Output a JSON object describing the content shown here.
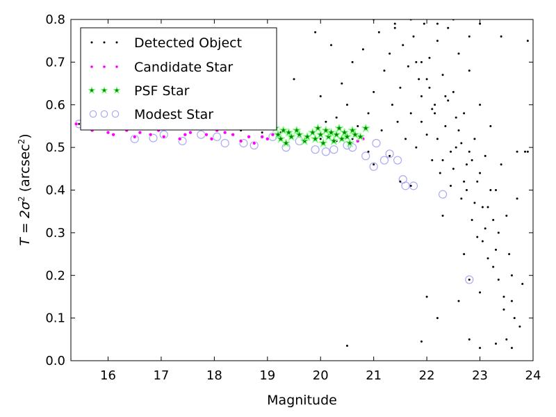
{
  "chart_data": {
    "type": "scatter",
    "title": "",
    "xlabel": "Magnitude",
    "ylabel_parts": {
      "main": "T = 2σ",
      "sup1": "2",
      "unit": " (arcsec",
      "sup2": "2",
      "close": ")"
    },
    "xlim": [
      15.3,
      24.0
    ],
    "ylim": [
      0.0,
      0.8
    ],
    "xticks": [
      16,
      17,
      18,
      19,
      20,
      21,
      22,
      23,
      24
    ],
    "yticks": [
      0.0,
      0.1,
      0.2,
      0.3,
      0.4,
      0.5,
      0.6,
      0.7,
      0.8
    ],
    "xtick_labels": [
      "16",
      "17",
      "18",
      "19",
      "20",
      "21",
      "22",
      "23",
      "24"
    ],
    "ytick_labels": [
      "0.0",
      "0.1",
      "0.2",
      "0.3",
      "0.4",
      "0.5",
      "0.6",
      "0.7",
      "0.8"
    ],
    "grid": false,
    "legend_position": "top-left",
    "series": [
      {
        "name": "Detected Object",
        "marker": "dot",
        "color": "#000000",
        "points": [
          [
            15.45,
            0.555
          ],
          [
            15.9,
            0.548
          ],
          [
            16.3,
            0.545
          ],
          [
            16.8,
            0.55
          ],
          [
            17.2,
            0.548
          ],
          [
            17.6,
            0.547
          ],
          [
            18.1,
            0.545
          ],
          [
            18.5,
            0.54
          ],
          [
            18.9,
            0.535
          ],
          [
            19.25,
            0.535
          ],
          [
            19.6,
            0.53
          ],
          [
            20.0,
            0.52
          ],
          [
            20.3,
            0.515
          ],
          [
            20.6,
            0.52
          ],
          [
            20.9,
            0.49
          ],
          [
            21.0,
            0.46
          ],
          [
            21.3,
            0.48
          ],
          [
            21.5,
            0.42
          ],
          [
            21.7,
            0.41
          ],
          [
            22.8,
            0.19
          ],
          [
            19.5,
            0.66
          ],
          [
            19.9,
            0.77
          ],
          [
            20.0,
            0.62
          ],
          [
            20.1,
            0.56
          ],
          [
            20.2,
            0.74
          ],
          [
            20.3,
            0.57
          ],
          [
            20.4,
            0.65
          ],
          [
            20.5,
            0.6
          ],
          [
            20.6,
            0.7
          ],
          [
            20.7,
            0.55
          ],
          [
            20.8,
            0.73
          ],
          [
            20.9,
            0.58
          ],
          [
            21.0,
            0.63
          ],
          [
            21.1,
            0.77
          ],
          [
            21.15,
            0.54
          ],
          [
            21.2,
            0.68
          ],
          [
            21.3,
            0.72
          ],
          [
            21.35,
            0.6
          ],
          [
            21.4,
            0.78
          ],
          [
            21.45,
            0.56
          ],
          [
            21.5,
            0.64
          ],
          [
            21.55,
            0.74
          ],
          [
            21.6,
            0.52
          ],
          [
            21.65,
            0.69
          ],
          [
            21.7,
            0.58
          ],
          [
            21.75,
            0.76
          ],
          [
            21.8,
            0.5
          ],
          [
            21.85,
            0.66
          ],
          [
            21.9,
            0.62
          ],
          [
            21.95,
            0.79
          ],
          [
            22.0,
            0.53
          ],
          [
            22.05,
            0.71
          ],
          [
            22.1,
            0.47
          ],
          [
            22.15,
            0.6
          ],
          [
            22.2,
            0.75
          ],
          [
            22.25,
            0.44
          ],
          [
            22.3,
            0.67
          ],
          [
            22.35,
            0.55
          ],
          [
            22.4,
            0.78
          ],
          [
            22.45,
            0.41
          ],
          [
            22.5,
            0.63
          ],
          [
            22.55,
            0.5
          ],
          [
            22.6,
            0.72
          ],
          [
            22.65,
            0.38
          ],
          [
            22.7,
            0.58
          ],
          [
            22.75,
            0.46
          ],
          [
            22.8,
            0.68
          ],
          [
            22.85,
            0.33
          ],
          [
            22.9,
            0.52
          ],
          [
            22.95,
            0.42
          ],
          [
            23.0,
            0.6
          ],
          [
            23.05,
            0.28
          ],
          [
            23.1,
            0.48
          ],
          [
            23.15,
            0.36
          ],
          [
            23.2,
            0.55
          ],
          [
            23.25,
            0.22
          ],
          [
            23.3,
            0.4
          ],
          [
            23.35,
            0.3
          ],
          [
            23.4,
            0.46
          ],
          [
            23.45,
            0.15
          ],
          [
            23.5,
            0.34
          ],
          [
            23.55,
            0.25
          ],
          [
            23.6,
            0.2
          ],
          [
            23.65,
            0.1
          ],
          [
            23.7,
            0.38
          ],
          [
            23.75,
            0.08
          ],
          [
            23.8,
            0.18
          ],
          [
            23.85,
            0.49
          ],
          [
            21.8,
            0.7
          ],
          [
            21.9,
            0.56
          ],
          [
            22.0,
            0.66
          ],
          [
            22.1,
            0.59
          ],
          [
            22.2,
            0.52
          ],
          [
            22.3,
            0.47
          ],
          [
            22.4,
            0.61
          ],
          [
            22.5,
            0.45
          ],
          [
            22.6,
            0.54
          ],
          [
            22.7,
            0.42
          ],
          [
            22.8,
            0.49
          ],
          [
            22.9,
            0.37
          ],
          [
            23.0,
            0.44
          ],
          [
            23.1,
            0.31
          ],
          [
            23.2,
            0.4
          ],
          [
            23.3,
            0.26
          ],
          [
            22.0,
            0.15
          ],
          [
            22.6,
            0.14
          ],
          [
            22.8,
            0.05
          ],
          [
            23.0,
            0.03
          ],
          [
            23.3,
            0.04
          ],
          [
            23.6,
            0.03
          ],
          [
            21.9,
            0.045
          ],
          [
            20.5,
            0.035
          ],
          [
            22.2,
            0.1
          ],
          [
            23.5,
            0.05
          ],
          [
            21.0,
            0.8
          ],
          [
            21.4,
            0.79
          ],
          [
            21.7,
            0.8
          ],
          [
            22.2,
            0.79
          ],
          [
            22.5,
            0.8
          ],
          [
            23.0,
            0.79
          ],
          [
            22.8,
            0.76
          ],
          [
            23.4,
            0.76
          ],
          [
            23.9,
            0.75
          ],
          [
            23.7,
            0.49
          ],
          [
            23.9,
            0.49
          ],
          [
            21.9,
            0.7
          ],
          [
            22.05,
            0.64
          ],
          [
            22.15,
            0.58
          ],
          [
            22.35,
            0.62
          ],
          [
            22.55,
            0.57
          ],
          [
            22.65,
            0.51
          ],
          [
            22.85,
            0.47
          ],
          [
            23.05,
            0.36
          ],
          [
            23.25,
            0.33
          ],
          [
            22.45,
            0.49
          ],
          [
            22.75,
            0.4
          ],
          [
            22.95,
            0.29
          ],
          [
            23.15,
            0.24
          ],
          [
            23.35,
            0.19
          ],
          [
            23.45,
            0.12
          ],
          [
            22.3,
            0.34
          ],
          [
            22.7,
            0.25
          ],
          [
            23.0,
            0.16
          ],
          [
            23.6,
            0.14
          ]
        ]
      },
      {
        "name": "Candidate Star",
        "marker": "circle-small",
        "color": "#ff00ff",
        "points": [
          [
            15.4,
            0.555
          ],
          [
            15.55,
            0.548
          ],
          [
            15.7,
            0.54
          ],
          [
            15.85,
            0.55
          ],
          [
            16.0,
            0.535
          ],
          [
            16.1,
            0.53
          ],
          [
            16.2,
            0.545
          ],
          [
            16.35,
            0.54
          ],
          [
            16.5,
            0.525
          ],
          [
            16.6,
            0.535
          ],
          [
            16.7,
            0.545
          ],
          [
            16.8,
            0.53
          ],
          [
            16.95,
            0.54
          ],
          [
            17.05,
            0.525
          ],
          [
            17.2,
            0.545
          ],
          [
            17.35,
            0.52
          ],
          [
            17.45,
            0.53
          ],
          [
            17.55,
            0.535
          ],
          [
            17.7,
            0.545
          ],
          [
            17.85,
            0.53
          ],
          [
            17.95,
            0.52
          ],
          [
            18.05,
            0.54
          ],
          [
            18.2,
            0.535
          ],
          [
            18.35,
            0.53
          ],
          [
            18.5,
            0.515
          ],
          [
            18.65,
            0.525
          ],
          [
            18.75,
            0.51
          ],
          [
            18.9,
            0.525
          ],
          [
            19.0,
            0.52
          ],
          [
            19.1,
            0.53
          ],
          [
            20.7,
            0.515
          ],
          [
            20.8,
            0.52
          ]
        ]
      },
      {
        "name": "PSF Star",
        "marker": "star",
        "color": "#008000",
        "points": [
          [
            19.15,
            0.545
          ],
          [
            19.2,
            0.53
          ],
          [
            19.25,
            0.52
          ],
          [
            19.3,
            0.54
          ],
          [
            19.35,
            0.51
          ],
          [
            19.4,
            0.535
          ],
          [
            19.45,
            0.525
          ],
          [
            19.55,
            0.54
          ],
          [
            19.6,
            0.53
          ],
          [
            19.7,
            0.515
          ],
          [
            19.75,
            0.525
          ],
          [
            19.85,
            0.535
          ],
          [
            19.9,
            0.52
          ],
          [
            19.95,
            0.545
          ],
          [
            20.0,
            0.53
          ],
          [
            20.05,
            0.51
          ],
          [
            20.1,
            0.54
          ],
          [
            20.15,
            0.525
          ],
          [
            20.2,
            0.535
          ],
          [
            20.25,
            0.515
          ],
          [
            20.3,
            0.53
          ],
          [
            20.35,
            0.545
          ],
          [
            20.4,
            0.52
          ],
          [
            20.45,
            0.535
          ],
          [
            20.5,
            0.525
          ],
          [
            20.55,
            0.51
          ],
          [
            20.6,
            0.54
          ],
          [
            20.65,
            0.53
          ],
          [
            20.75,
            0.525
          ],
          [
            20.85,
            0.545
          ]
        ]
      },
      {
        "name": "Modest Star",
        "marker": "circle-open",
        "color": "#a9a9f5",
        "points": [
          [
            15.45,
            0.555
          ],
          [
            15.9,
            0.578
          ],
          [
            16.1,
            0.575
          ],
          [
            16.3,
            0.55
          ],
          [
            16.5,
            0.52
          ],
          [
            16.85,
            0.522
          ],
          [
            17.05,
            0.53
          ],
          [
            17.4,
            0.515
          ],
          [
            17.75,
            0.53
          ],
          [
            18.05,
            0.525
          ],
          [
            18.2,
            0.51
          ],
          [
            18.55,
            0.51
          ],
          [
            18.75,
            0.505
          ],
          [
            19.1,
            0.525
          ],
          [
            19.35,
            0.5
          ],
          [
            19.6,
            0.515
          ],
          [
            19.9,
            0.495
          ],
          [
            20.1,
            0.49
          ],
          [
            20.25,
            0.495
          ],
          [
            20.5,
            0.505
          ],
          [
            20.6,
            0.5
          ],
          [
            20.85,
            0.48
          ],
          [
            21.0,
            0.455
          ],
          [
            21.05,
            0.51
          ],
          [
            21.2,
            0.47
          ],
          [
            21.3,
            0.485
          ],
          [
            21.45,
            0.47
          ],
          [
            21.55,
            0.425
          ],
          [
            21.6,
            0.41
          ],
          [
            21.75,
            0.41
          ],
          [
            22.3,
            0.39
          ],
          [
            22.8,
            0.19
          ]
        ]
      }
    ]
  }
}
